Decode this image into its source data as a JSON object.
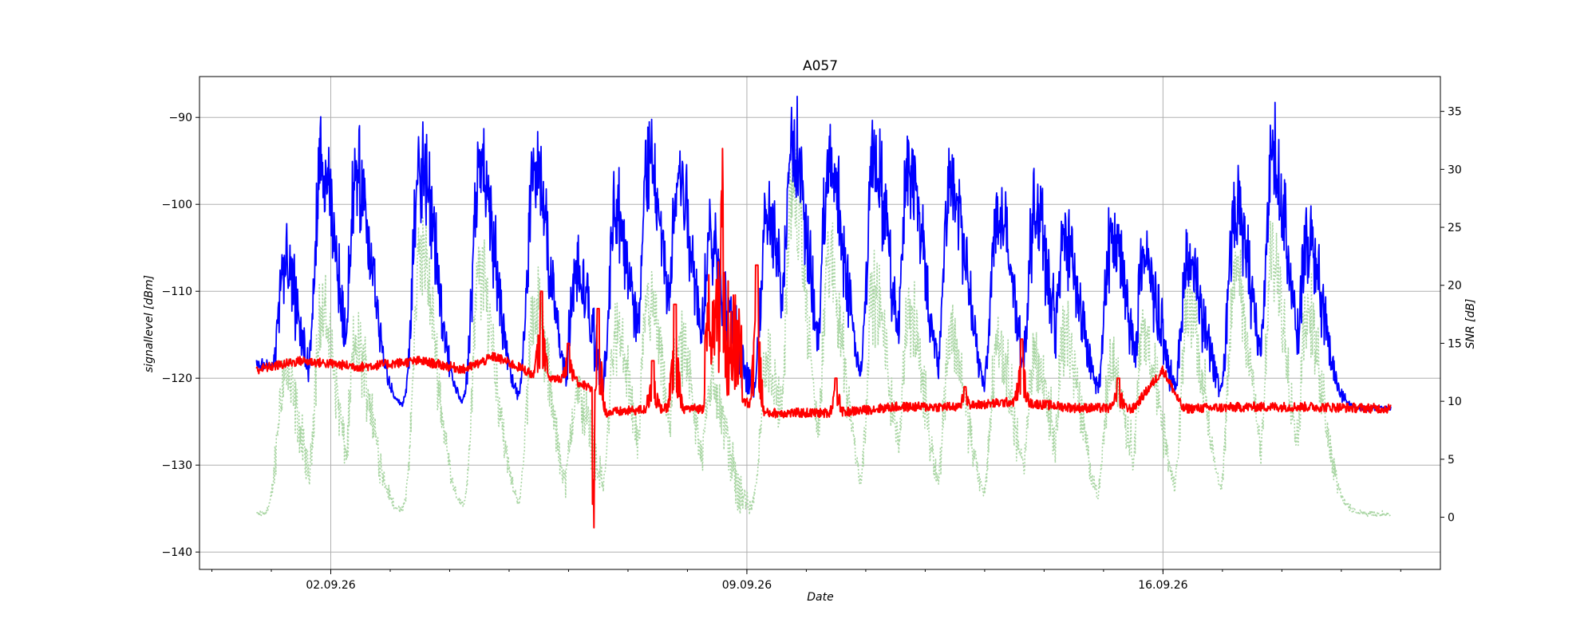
{
  "chart_data": {
    "type": "line",
    "title": "A057",
    "xlabel": "Date",
    "ylabel_left": "signallevel [dBm]",
    "ylabel_right": "SNR [dB]",
    "x_type": "date",
    "xlim": [
      "2026-08-30T19:00",
      "2026-09-20T16:00"
    ],
    "x_major_ticks": [
      "02.09.26",
      "09.09.26",
      "16.09.26"
    ],
    "x_major_tick_dates": [
      "2026-09-02",
      "2026-09-09",
      "2026-09-16"
    ],
    "x_minor_ticks": "daily",
    "ylim_left": [
      -142,
      -85.3
    ],
    "yticks_left": [
      -90,
      -100,
      -110,
      -120,
      -130,
      -140
    ],
    "ylim_right": [
      -4.5,
      38
    ],
    "yticks_right": [
      0,
      5,
      10,
      15,
      20,
      25,
      30,
      35
    ],
    "grid": true,
    "data_start": "2026-08-31T18:00",
    "data_end": "2026-09-19T20:00",
    "series": [
      {
        "axis": "right",
        "style": "dotted",
        "color": "#a8d5a2",
        "linewidth": 1.6,
        "description_values": "daily peaks in SNR [dB], baseline near 0 dB",
        "baseline": 0.3,
        "peaks": [
          [
            "2026-09-01T05:00",
            14
          ],
          [
            "2026-09-01T20:00",
            20
          ],
          [
            "2026-09-02T10:00",
            17
          ],
          [
            "2026-09-03T12:00",
            26
          ],
          [
            "2026-09-04T12:00",
            24
          ],
          [
            "2026-09-05T10:00",
            21
          ],
          [
            "2026-09-06T03:00",
            12
          ],
          [
            "2026-09-06T19:00",
            18
          ],
          [
            "2026-09-07T08:00",
            21
          ],
          [
            "2026-09-07T20:00",
            17
          ],
          [
            "2026-09-08T09:00",
            13
          ],
          [
            "2026-09-08T14:00",
            4
          ],
          [
            "2026-09-09T08:00",
            15
          ],
          [
            "2026-09-09T18:00",
            32
          ],
          [
            "2026-09-10T09:00",
            25
          ],
          [
            "2026-09-11T03:00",
            22
          ],
          [
            "2026-09-11T17:00",
            20
          ],
          [
            "2026-09-12T10:00",
            18
          ],
          [
            "2026-09-13T05:00",
            17
          ],
          [
            "2026-09-13T20:00",
            16
          ],
          [
            "2026-09-14T08:00",
            18
          ],
          [
            "2026-09-15T03:00",
            15
          ],
          [
            "2026-09-15T16:00",
            18
          ],
          [
            "2026-09-16T10:00",
            21
          ],
          [
            "2026-09-17T05:00",
            24
          ],
          [
            "2026-09-17T20:00",
            25
          ],
          [
            "2026-09-18T10:00",
            20
          ]
        ]
      },
      {
        "axis": "left",
        "style": "solid",
        "color": "#0000ff",
        "linewidth": 1.8,
        "description_values": "signal level [dBm], daily peaks over a floor near -123 dBm",
        "baseline": -123.5,
        "start_level": -118.5,
        "peaks": [
          [
            "2026-09-01T05:00",
            -105
          ],
          [
            "2026-09-01T20:00",
            -92.5
          ],
          [
            "2026-09-02T10:00",
            -92.8
          ],
          [
            "2026-09-03T12:00",
            -90.3
          ],
          [
            "2026-09-04T12:00",
            -91
          ],
          [
            "2026-09-05T10:00",
            -91.5
          ],
          [
            "2026-09-06T03:00",
            -106
          ],
          [
            "2026-09-06T19:00",
            -98
          ],
          [
            "2026-09-07T08:00",
            -91
          ],
          [
            "2026-09-07T20:00",
            -93
          ],
          [
            "2026-09-08T09:00",
            -101
          ],
          [
            "2026-09-08T14:00",
            -110
          ],
          [
            "2026-09-09T08:00",
            -99
          ],
          [
            "2026-09-09T18:00",
            -88
          ],
          [
            "2026-09-10T09:00",
            -91
          ],
          [
            "2026-09-11T03:00",
            -91
          ],
          [
            "2026-09-11T17:00",
            -91
          ],
          [
            "2026-09-12T10:00",
            -93
          ],
          [
            "2026-09-13T05:00",
            -98
          ],
          [
            "2026-09-13T20:00",
            -98
          ],
          [
            "2026-09-14T08:00",
            -101
          ],
          [
            "2026-09-15T03:00",
            -101
          ],
          [
            "2026-09-15T16:00",
            -104
          ],
          [
            "2026-09-16T10:00",
            -104
          ],
          [
            "2026-09-17T05:00",
            -97
          ],
          [
            "2026-09-17T20:00",
            -90.5
          ],
          [
            "2026-09-18T10:00",
            -102
          ]
        ]
      },
      {
        "axis": "left",
        "style": "solid",
        "color": "#ff0000",
        "linewidth": 2.0,
        "description_values": "noise level [dBm] baseline",
        "points": [
          [
            "2026-08-31T18:00",
            -119
          ],
          [
            "2026-09-01T12:00",
            -118
          ],
          [
            "2026-09-02T12:00",
            -118.7
          ],
          [
            "2026-09-03T12:00",
            -118
          ],
          [
            "2026-09-04T06:00",
            -119
          ],
          [
            "2026-09-04T18:00",
            -117.5
          ],
          [
            "2026-09-05T06:00",
            -119
          ],
          [
            "2026-09-05T12:00",
            -120
          ],
          [
            "2026-09-06T00:00",
            -120
          ],
          [
            "2026-09-06T08:00",
            -121
          ],
          [
            "2026-09-06T14:00",
            -124
          ],
          [
            "2026-09-07T12:00",
            -123.5
          ],
          [
            "2026-09-08T12:00",
            -123.5
          ],
          [
            "2026-09-08T20:00",
            -122
          ],
          [
            "2026-09-09T06:00",
            -124
          ],
          [
            "2026-09-10T12:00",
            -124
          ],
          [
            "2026-09-11T12:00",
            -123.3
          ],
          [
            "2026-09-12T12:00",
            -123.3
          ],
          [
            "2026-09-13T12:00",
            -122.7
          ],
          [
            "2026-09-14T12:00",
            -123.4
          ],
          [
            "2026-09-15T12:00",
            -123.5
          ],
          [
            "2026-09-16T00:00",
            -119
          ],
          [
            "2026-09-16T08:00",
            -123.5
          ],
          [
            "2026-09-17T12:00",
            -123.3
          ],
          [
            "2026-09-18T12:00",
            -123.3
          ],
          [
            "2026-09-19T20:00",
            -123.5
          ]
        ],
        "spikes": [
          [
            "2026-09-05T13:00",
            -110
          ],
          [
            "2026-09-06T00:00",
            -116
          ],
          [
            "2026-09-06T10:00",
            -139.5
          ],
          [
            "2026-09-06T12:00",
            -112
          ],
          [
            "2026-09-07T10:00",
            -118
          ],
          [
            "2026-09-07T19:00",
            -111.5
          ],
          [
            "2026-09-08T09:00",
            -117
          ],
          [
            "2026-09-08T14:00",
            -104
          ],
          [
            "2026-09-09T04:00",
            -107
          ],
          [
            "2026-09-10T12:00",
            -120
          ],
          [
            "2026-09-12T16:00",
            -121
          ],
          [
            "2026-09-13T15:00",
            -115.5
          ],
          [
            "2026-09-15T06:00",
            -120
          ]
        ]
      }
    ]
  }
}
